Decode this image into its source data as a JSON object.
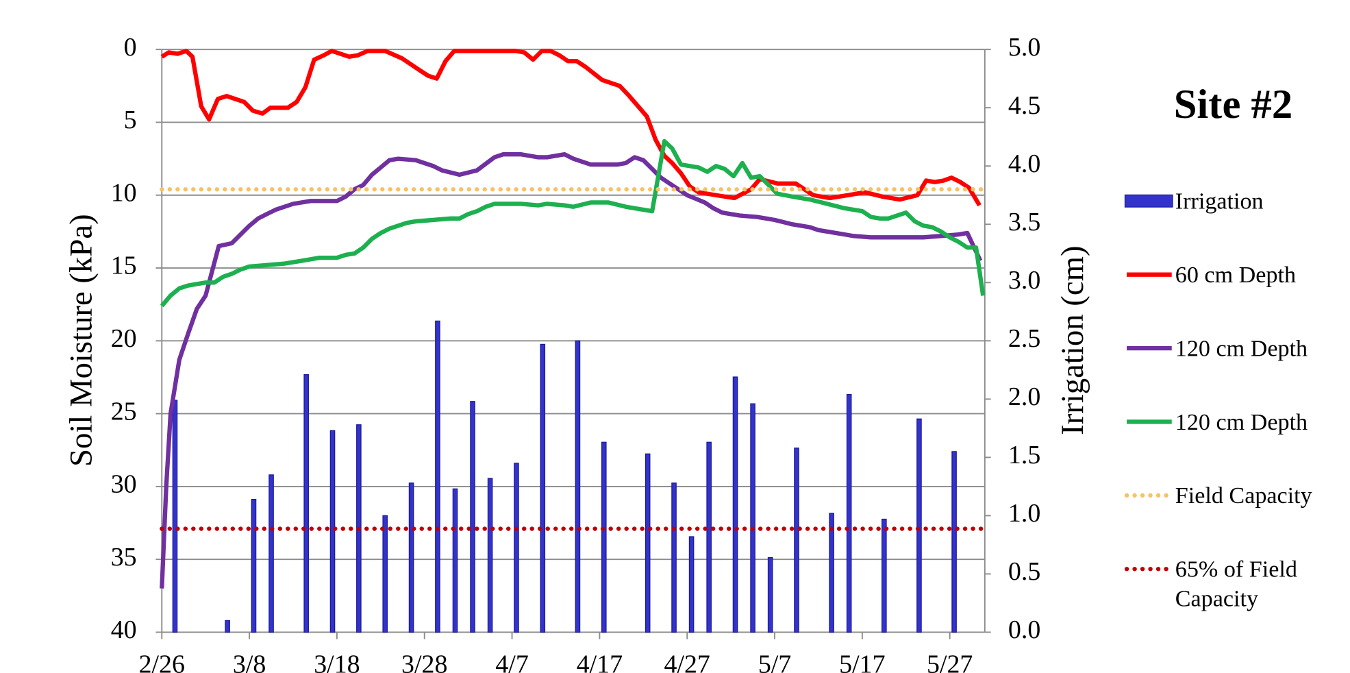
{
  "chart_data": {
    "type": "combo",
    "title": "Site #2",
    "ylabel": "Soil Moisture (kPa)",
    "y2label": "Irrigation (cm)",
    "xlim": [
      0,
      94
    ],
    "xticks": [
      {
        "value": 0,
        "label": "2/26"
      },
      {
        "value": 10,
        "label": "3/8"
      },
      {
        "value": 20,
        "label": "3/18"
      },
      {
        "value": 30,
        "label": "3/28"
      },
      {
        "value": 40,
        "label": "4/7"
      },
      {
        "value": 50,
        "label": "4/17"
      },
      {
        "value": 60,
        "label": "4/27"
      },
      {
        "value": 70,
        "label": "5/7"
      },
      {
        "value": 80,
        "label": "5/17"
      },
      {
        "value": 90,
        "label": "5/27"
      }
    ],
    "ylim": [
      40,
      0
    ],
    "yticks": [
      0,
      5,
      10,
      15,
      20,
      25,
      30,
      35,
      40
    ],
    "y2lim": [
      0,
      5
    ],
    "y2ticks": [
      {
        "value": 0,
        "label": "0.0"
      },
      0.5,
      {
        "value": 1,
        "label": "1.0"
      },
      1.5,
      {
        "value": 2,
        "label": "2.0"
      },
      2.5,
      {
        "value": 3,
        "label": "3.0"
      },
      3.5,
      {
        "value": 4,
        "label": "4.0"
      },
      4.5,
      {
        "value": 5,
        "label": "5.0"
      }
    ],
    "grid": true,
    "series": [
      {
        "name": "Irrigation",
        "type": "bar",
        "axis": "y2",
        "color": "#3333cc",
        "x": [
          1.5,
          7.5,
          10.5,
          12.5,
          16.5,
          19.5,
          22.5,
          25.5,
          28.5,
          31.5,
          33.5,
          35.5,
          37.5,
          40.5,
          43.5,
          47.5,
          50.5,
          55.5,
          58.5,
          60.5,
          62.5,
          65.5,
          67.5,
          69.5,
          72.5,
          76.5,
          78.5,
          82.5,
          86.5,
          90.5
        ],
        "values": [
          1.99,
          0.1,
          1.14,
          1.35,
          2.21,
          1.73,
          1.78,
          1.0,
          1.28,
          2.67,
          1.23,
          1.98,
          1.32,
          1.45,
          2.47,
          2.5,
          1.63,
          1.53,
          1.28,
          0.82,
          1.63,
          2.19,
          1.96,
          0.64,
          1.58,
          1.02,
          2.04,
          0.97,
          1.83,
          1.55
        ]
      },
      {
        "name": "60 cm Depth",
        "type": "line",
        "color": "#ff0000",
        "x": [
          0,
          0.8,
          1.8,
          2.8,
          3.5,
          4.5,
          5.4,
          6.4,
          7.4,
          9.4,
          10.4,
          11.5,
          12.4,
          14.4,
          15.4,
          16.4,
          17.4,
          18.5,
          19.4,
          21.4,
          22.4,
          23.5,
          25.5,
          27.4,
          29.4,
          30.4,
          31.4,
          32.4,
          33.4,
          40.4,
          41.4,
          42.4,
          43.4,
          44.4,
          45.4,
          46.4,
          47.4,
          48.4,
          50.3,
          52.3,
          53.4,
          55.4,
          56.4,
          57.4,
          58.3,
          59.3,
          60.3,
          61.3,
          63.3,
          65.4,
          67.3,
          68.3,
          70.3,
          72.4,
          74.4,
          76.3,
          78.4,
          80.3,
          82.3,
          84.3,
          86.3,
          87.3,
          88.3,
          89.3,
          90.2,
          91.2,
          92.2,
          93.4
        ],
        "values": [
          0.5,
          0.2,
          0.3,
          0.1,
          0.5,
          3.9,
          4.8,
          3.4,
          3.2,
          3.6,
          4.2,
          4.4,
          4.0,
          4.0,
          3.6,
          2.6,
          0.7,
          0.4,
          0.1,
          0.5,
          0.4,
          0.1,
          0.1,
          0.6,
          1.4,
          1.8,
          2.0,
          0.8,
          0.1,
          0.1,
          0.2,
          0.7,
          0.1,
          0.1,
          0.4,
          0.8,
          0.8,
          1.2,
          2.1,
          2.5,
          3.2,
          4.6,
          6.2,
          7.3,
          7.8,
          8.5,
          9.4,
          9.8,
          10.0,
          10.2,
          9.6,
          8.9,
          9.2,
          9.2,
          10.0,
          10.2,
          10.0,
          9.8,
          10.1,
          10.3,
          10.0,
          9.0,
          9.1,
          9.0,
          8.8,
          9.1,
          9.5,
          10.7
        ]
      },
      {
        "name": "120 cm Depth",
        "type": "line",
        "color": "#7030a0",
        "x": [
          0,
          0.5,
          1,
          2,
          3,
          4,
          5,
          6.5,
          8,
          10,
          11,
          12,
          13,
          15,
          17,
          20,
          21,
          22,
          23,
          24,
          25,
          26,
          27,
          29,
          31,
          32,
          34,
          36,
          38,
          39,
          41,
          42,
          43,
          44,
          46,
          47,
          49,
          52,
          53,
          54,
          55,
          56,
          57,
          58,
          59,
          60,
          62,
          63,
          64,
          66,
          68,
          69,
          70,
          72,
          74,
          75,
          77,
          79,
          81,
          84,
          87,
          89,
          91,
          92,
          93.5
        ],
        "values": [
          37,
          30,
          25,
          21.3,
          19.5,
          17.8,
          16.9,
          13.5,
          13.3,
          12.1,
          11.6,
          11.3,
          11.0,
          10.6,
          10.4,
          10.4,
          10.1,
          9.6,
          9.3,
          8.6,
          8.1,
          7.6,
          7.5,
          7.6,
          8.0,
          8.3,
          8.6,
          8.3,
          7.4,
          7.2,
          7.2,
          7.3,
          7.4,
          7.4,
          7.2,
          7.5,
          7.9,
          7.9,
          7.8,
          7.4,
          7.6,
          8.2,
          8.8,
          9.2,
          9.6,
          10.0,
          10.5,
          10.9,
          11.2,
          11.4,
          11.5,
          11.6,
          11.7,
          12.0,
          12.2,
          12.4,
          12.6,
          12.8,
          12.9,
          12.9,
          12.9,
          12.8,
          12.7,
          12.6,
          14.5
        ]
      },
      {
        "name": "120 cm Depth",
        "type": "line",
        "color": "#1db04f",
        "x": [
          0,
          1,
          2,
          3,
          5,
          6,
          7,
          8,
          9,
          10,
          12,
          14,
          16,
          18,
          20,
          21,
          22,
          23,
          24,
          25,
          26,
          28,
          29,
          31,
          33,
          34,
          35,
          36,
          37,
          38,
          41,
          43,
          44,
          46,
          47,
          49,
          51,
          53,
          55,
          56,
          57.4,
          58.3,
          59.3,
          61.3,
          62.3,
          63.3,
          64.3,
          65.3,
          66.3,
          67.3,
          68.3,
          70.3,
          72,
          74,
          76,
          78,
          80,
          81,
          82,
          83,
          84,
          85,
          86,
          87,
          88,
          89,
          90,
          91,
          92,
          93,
          93.8
        ],
        "values": [
          17.6,
          16.9,
          16.4,
          16.2,
          16.0,
          16.0,
          15.6,
          15.4,
          15.1,
          14.9,
          14.8,
          14.7,
          14.5,
          14.3,
          14.3,
          14.1,
          14.0,
          13.6,
          13.0,
          12.6,
          12.3,
          11.9,
          11.8,
          11.7,
          11.6,
          11.6,
          11.3,
          11.1,
          10.8,
          10.6,
          10.6,
          10.7,
          10.6,
          10.7,
          10.8,
          10.5,
          10.5,
          10.8,
          11.0,
          11.1,
          6.3,
          6.8,
          7.9,
          8.1,
          8.4,
          8.0,
          8.2,
          8.7,
          7.8,
          8.8,
          8.7,
          9.9,
          10.1,
          10.3,
          10.6,
          10.9,
          11.1,
          11.5,
          11.6,
          11.6,
          11.4,
          11.2,
          11.8,
          12.1,
          12.2,
          12.5,
          12.9,
          13.2,
          13.6,
          13.6,
          16.9
        ]
      }
    ],
    "reference_lines": [
      {
        "name": "Field Capacity",
        "value": 9.6,
        "color": "#f5c16a",
        "style": "dotted"
      },
      {
        "name": "65% of Field Capacity",
        "value": 32.9,
        "color": "#c00000",
        "style": "dotted"
      }
    ]
  }
}
